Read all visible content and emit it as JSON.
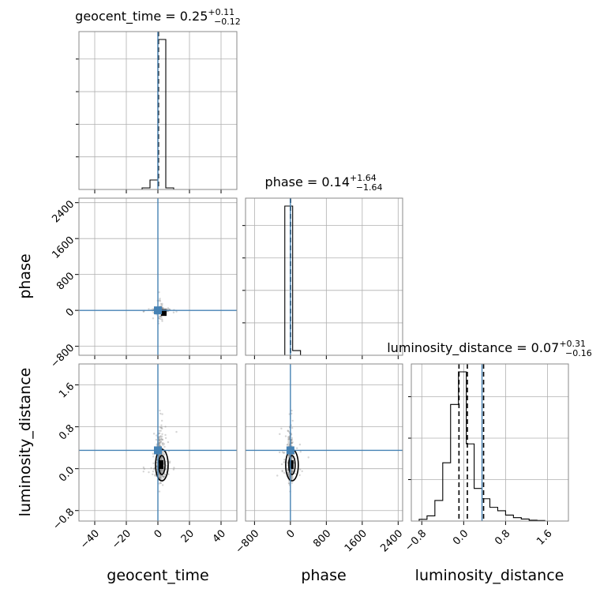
{
  "chart_data": {
    "type": "corner",
    "parameters": [
      "geocent_time",
      "phase",
      "luminosity_distance"
    ],
    "titles": [
      {
        "param": "geocent_time",
        "prefix": "geocent_time = ",
        "median": "0.25",
        "plus": "+0.11",
        "minus": "−0.12"
      },
      {
        "param": "phase",
        "prefix": "phase = ",
        "median": "0.14",
        "plus": "+1.64",
        "minus": "−1.64"
      },
      {
        "param": "luminosity_distance",
        "prefix": "luminosity_distance = ",
        "median": "0.07",
        "plus": "+0.31",
        "minus": "−0.16"
      }
    ],
    "ranges": {
      "geocent_time": [
        -50,
        50
      ],
      "phase": [
        -1000,
        2500
      ],
      "luminosity_distance": [
        -1.0,
        2.0
      ]
    },
    "ticks": {
      "geocent_time": {
        "values": [
          -40,
          -20,
          0,
          20,
          40
        ],
        "labels": [
          "−40",
          "−20",
          "0",
          "20",
          "40"
        ]
      },
      "phase": {
        "values": [
          -800,
          0,
          800,
          1600,
          2400
        ],
        "labels": [
          "−800",
          "0",
          "800",
          "1600",
          "2400"
        ]
      },
      "luminosity_distance": {
        "values": [
          -0.8,
          0.0,
          0.8,
          1.6
        ],
        "labels": [
          "−0.8",
          "0.0",
          "0.8",
          "1.6"
        ]
      }
    },
    "truths": {
      "geocent_time": 0.0,
      "phase": 0.0,
      "luminosity_distance": 0.35
    },
    "quantiles": {
      "geocent_time": [
        0.13,
        0.25,
        0.36
      ],
      "phase": [
        -1.5,
        0.14,
        1.78
      ],
      "luminosity_distance": [
        -0.09,
        0.07,
        0.38
      ]
    },
    "histograms": {
      "geocent_time": {
        "edges": [
          -50,
          -45,
          -40,
          -35,
          -30,
          -25,
          -20,
          -15,
          -10,
          -5,
          0,
          5,
          10,
          15,
          20,
          25,
          30,
          35,
          40,
          45,
          50
        ],
        "counts": [
          0,
          0,
          0,
          0,
          0,
          0,
          0,
          0,
          0.01,
          0.06,
          0.95,
          0.01,
          0,
          0,
          0,
          0,
          0,
          0,
          0,
          0
        ]
      },
      "phase": {
        "edges": [
          -1000,
          -825,
          -650,
          -475,
          -300,
          -125,
          50,
          225,
          400,
          575,
          750,
          925,
          1100,
          1275,
          1450,
          1625,
          1800,
          1975,
          2150,
          2325,
          2500
        ],
        "counts": [
          0,
          0,
          0,
          0,
          0,
          0.95,
          0.03,
          0,
          0,
          0,
          0,
          0,
          0,
          0,
          0,
          0,
          0,
          0,
          0,
          0
        ]
      },
      "luminosity_distance": {
        "edges": [
          -1.0,
          -0.85,
          -0.7,
          -0.55,
          -0.4,
          -0.25,
          -0.1,
          0.05,
          0.2,
          0.35,
          0.5,
          0.65,
          0.8,
          0.95,
          1.1,
          1.25,
          1.4,
          1.55,
          1.7,
          1.85,
          2.0
        ],
        "counts": [
          0,
          0.01,
          0.03,
          0.12,
          0.34,
          0.68,
          0.87,
          0.45,
          0.19,
          0.13,
          0.08,
          0.06,
          0.035,
          0.02,
          0.012,
          0.005,
          0.003,
          0,
          0,
          0
        ]
      }
    },
    "colors": {
      "truth": "#4682b4",
      "hist": "#000000",
      "grid": "#b0b0b0",
      "points": "#888888"
    },
    "grid": true
  }
}
